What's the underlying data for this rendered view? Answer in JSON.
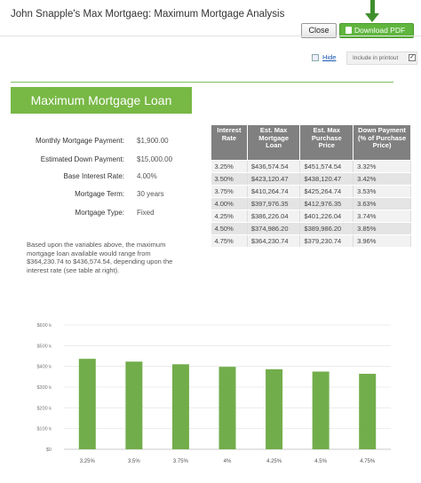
{
  "window": {
    "title": "John Snapple's Max Mortgaeg: Maximum Mortgage Analysis",
    "close_label": "Close",
    "download_label": "Download PDF"
  },
  "controls": {
    "hide_label": "Hide",
    "include_printout_label": "Include in printout",
    "include_printout_checked": true
  },
  "section": {
    "title": "Maximum Mortgage Loan"
  },
  "inputs": [
    {
      "label": "Monthly Mortgage Payment:",
      "value": "$1,900.00"
    },
    {
      "label": "Estimated Down Payment:",
      "value": "$15,000.00"
    },
    {
      "label": "Base Interest Rate:",
      "value": "4.00%"
    },
    {
      "label": "Mortgage Term:",
      "value": "30 years"
    },
    {
      "label": "Mortgage Type:",
      "value": "Fixed"
    }
  ],
  "table": {
    "headers": [
      "Interest Rate",
      "Est. Max Mortgage Loan",
      "Est. Max Purchase Price",
      "Down Payment (% of Purchase Price)"
    ],
    "rows": [
      [
        "3.25%",
        "$436,574.54",
        "$451,574.54",
        "3.32%"
      ],
      [
        "3.50%",
        "$423,120.47",
        "$438,120.47",
        "3.42%"
      ],
      [
        "3.75%",
        "$410,264.74",
        "$425,264.74",
        "3.53%"
      ],
      [
        "4.00%",
        "$397,976.35",
        "$412,976.35",
        "3.63%"
      ],
      [
        "4.25%",
        "$386,226.04",
        "$401,226.04",
        "3.74%"
      ],
      [
        "4.50%",
        "$374,986.20",
        "$389,986.20",
        "3.85%"
      ],
      [
        "4.75%",
        "$364,230.74",
        "$379,230.74",
        "3.96%"
      ]
    ]
  },
  "summary": "Based upon the variables above, the maximum mortgage loan available would range from $364,230.74 to $436,574.54, depending upon the interest rate (see table at right).",
  "colors": {
    "accent": "#78b845",
    "button_green": "#5fb53e",
    "bar": "#72ad4b",
    "header_gray": "#808080",
    "arrow": "#3f8f2c"
  },
  "chart_data": {
    "type": "bar",
    "categories": [
      "3.25%",
      "3.5%",
      "3.75%",
      "4%",
      "4.25%",
      "4.5%",
      "4.75%"
    ],
    "values": [
      436574.54,
      423120.47,
      410264.74,
      397976.35,
      386226.04,
      374986.2,
      364230.74
    ],
    "ylim": [
      0,
      600000
    ],
    "yticks": [
      0,
      100000,
      200000,
      300000,
      400000,
      500000,
      600000
    ],
    "ytick_labels": [
      "$0",
      "$100 k",
      "$200 k",
      "$300 k",
      "$400 k",
      "$500 k",
      "$600 k"
    ],
    "grid": true,
    "legend": "none"
  }
}
